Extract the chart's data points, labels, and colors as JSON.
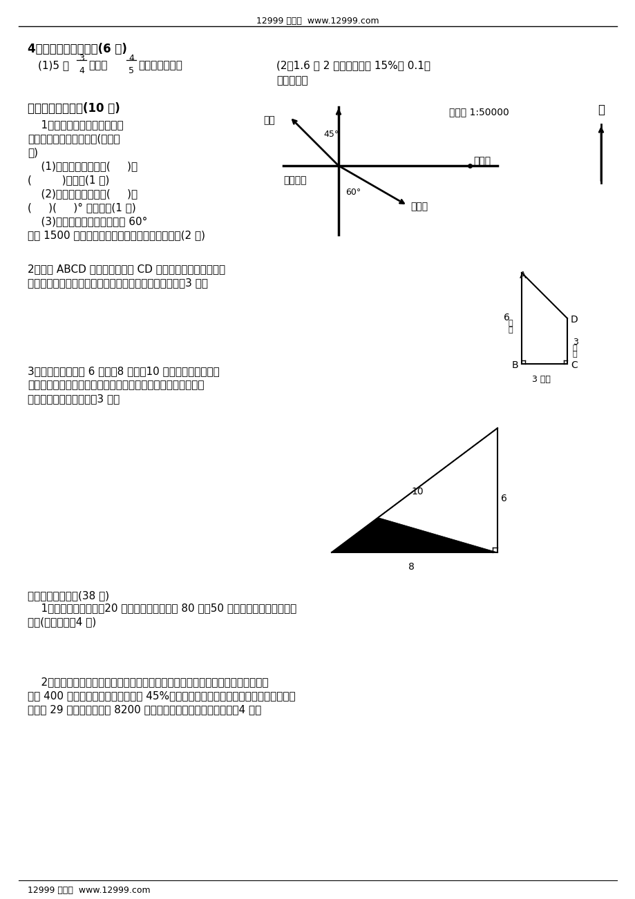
{
  "bg_color": "#ffffff",
  "header_text": "12999 数学网  www.12999.com",
  "footer_text": "12999 数学网  www.12999.com",
  "section4_title": "4、列式计算看清楚。(6 分)",
  "section4_q2_line1": "(2）1.6 的 2 倍比一个数的 15%少 0.1，",
  "section4_q2_line2": "求这个数。",
  "section5_title": "五、实践与探索。(10 分)",
  "map_scale": "比例尺 1:50000",
  "map_north": "北",
  "map_chaoshi": "超市",
  "map_renmin": "人民公园",
  "map_zhengfu": "市政府",
  "map_chezhan": "汽车站",
  "map_45deg": "45°",
  "map_60deg": "60°",
  "section5_q2_line1": "2、下图 ABCD 是直角梯形，以 CD 为轴并将梯形绕这个轴旋",
  "section5_q2_line2": "转一周，得到一个旋转体，它的体积是多少立方厘米？（3 分）",
  "trap_A": "A",
  "trap_B": "B",
  "trap_C": "C",
  "trap_D": "D",
  "trap_3cm_h": "3 厘米",
  "section5_q3_line1": "3、三条边长分别是 6 厘米、8 厘米、10 厘米的直角三角形。",
  "section5_q3_line2": "将它的最短边对折到斜边相重合（如图），那么，图中阴影部分",
  "section5_q3_line3": "面积是多少平方厘米？（3 分）",
  "tri_10": "10",
  "tri_6": "6",
  "tri_8": "8",
  "section6_title": "六、综合与应用：(38 分)",
  "section6_q1_line1": "    1、用一种方砖铺地，20 平方米的会议室需要 80 块，50 平方米的会议室需要多少",
  "section6_q1_line2": "块？(用比例解，4 分)",
  "section6_q2_line1": "    2、王大伯参加了县农村医疗保险。条款规定：农民住院医疗费补偿起付线，县级",
  "section6_q2_line2": "医院 400 元，在起付线以上的部分按 45%补偿。今年王大伯患急性肠炎在县人民医院住",
  "section6_q2_line3": "院治疗 29 天，共计医药费 8200 元。按规定王大伯自付多少元？（4 分）",
  "s5q1_l1": "    1、以人民公园为观测点，量",
  "s5q1_l2": "一量，填一填，画一画。(取整厘",
  "s5q1_l3": "米)",
  "s5q1_l4": "    (1)市政府在人民公园(     )面",
  "s5q1_l5": "(         )米处；(1 分)",
  "s5q1_l6": "    (2)汽车站在人民公园(     )偏",
  "s5q1_l7": "(     )(     )° 方向处；(1 分)",
  "s5q1_l8": "    (3)少年宫在人民公园南偏西 60°",
  "s5q1_l9": "方向 1500 米处，请在图中表示出少年宫的位置。(2 分)"
}
